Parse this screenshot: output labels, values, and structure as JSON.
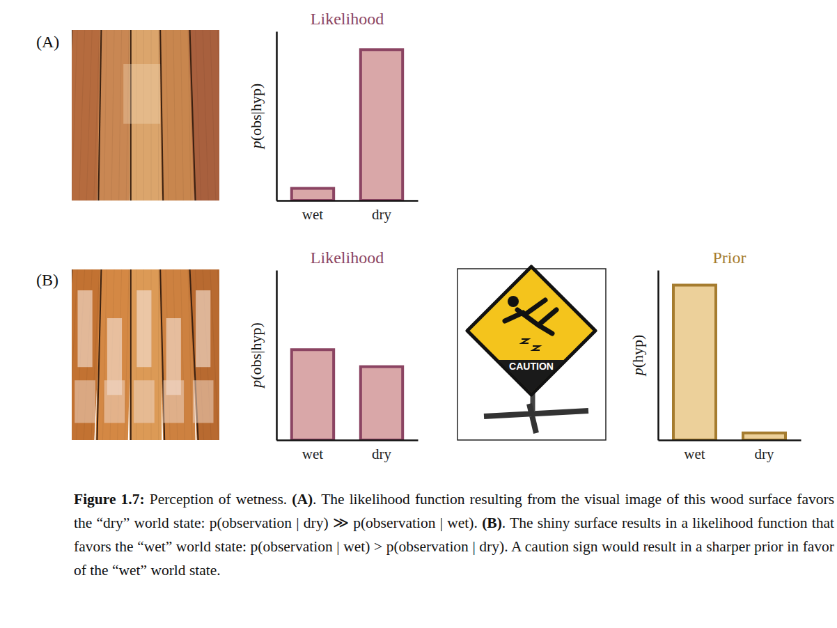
{
  "chart_data": [
    {
      "type": "bar",
      "title": "Likelihood",
      "y_label": "p(obs|hyp)",
      "categories": [
        "wet",
        "dry"
      ],
      "values": [
        0.08,
        0.9
      ],
      "color": "#d9a7a8",
      "ylim": [
        0,
        1
      ],
      "tick_labels": "x"
    },
    {
      "type": "bar",
      "title": "Likelihood",
      "y_label": "p(obs|hyp)",
      "categories": [
        "wet",
        "dry"
      ],
      "values": [
        0.54,
        0.44
      ],
      "color": "#d9a7a8",
      "ylim": [
        0,
        1
      ],
      "tick_labels": "x"
    },
    {
      "type": "bar",
      "title": "Prior",
      "y_label": "p(hyp)",
      "categories": [
        "wet",
        "dry"
      ],
      "values": [
        0.92,
        0.05
      ],
      "color": "#ecd09a",
      "ylim": [
        0,
        1
      ],
      "tick_labels": "x"
    }
  ],
  "figure": {
    "panels": [
      "(A)",
      "(B)"
    ],
    "sign_text": "CAUTION",
    "caption": [
      {
        "text": "Figure 1.7:",
        "style": "bold"
      },
      {
        "text": " Perception of wetness. ",
        "style": "normal"
      },
      {
        "text": "(A)",
        "style": "bold"
      },
      {
        "text": ". The likelihood function resulting from the visual image of this wood surface favors the “dry” world state:  p(observation | dry) ≫ p(observation | wet). ",
        "style": "normal"
      },
      {
        "text": "(B)",
        "style": "bold"
      },
      {
        "text": ". The shiny surface results in a likelihood function that favors the “wet” world state: p(observation | wet) > p(observation | dry).  A caution sign would result in a sharper prior in favor of the “wet” world state.",
        "style": "normal"
      }
    ]
  }
}
